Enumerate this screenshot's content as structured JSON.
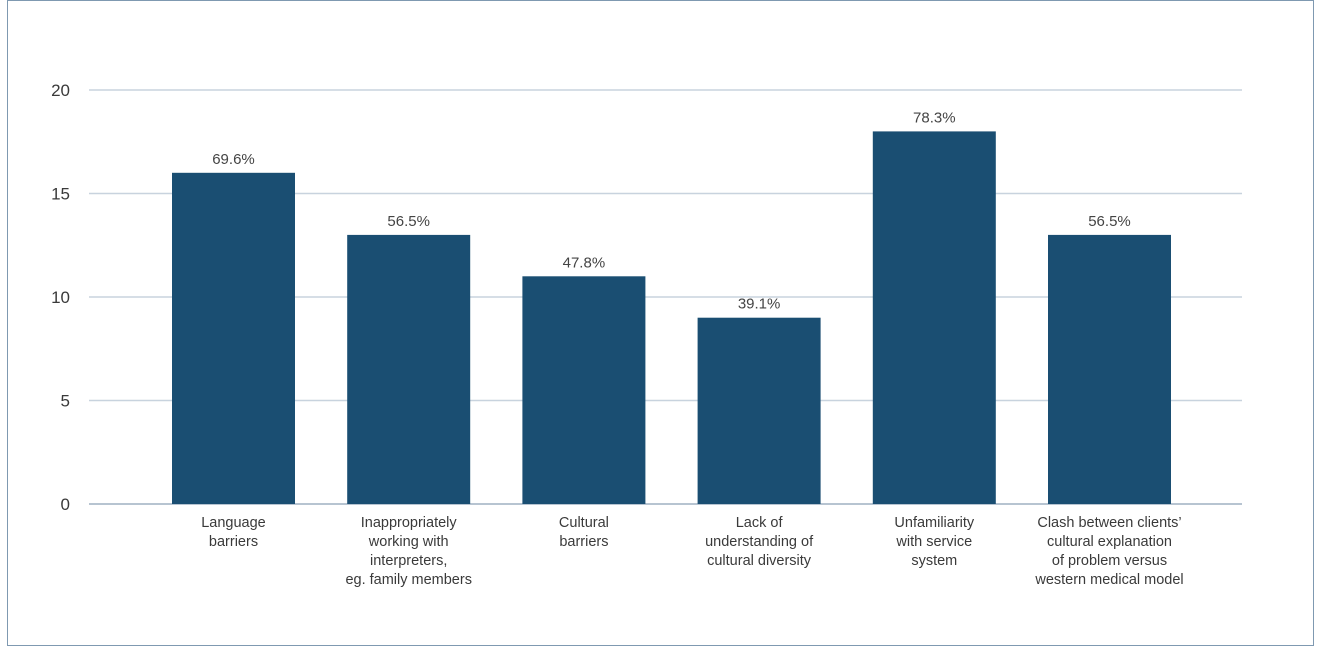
{
  "chart_data": {
    "type": "bar",
    "categories": [
      [
        "Language",
        "barriers"
      ],
      [
        "Inappropriately",
        "working with",
        "interpreters,",
        "eg. family members"
      ],
      [
        "Cultural",
        "barriers"
      ],
      [
        "Lack of",
        "understanding of",
        "cultural diversity"
      ],
      [
        "Unfamiliarity",
        "with service",
        "system"
      ],
      [
        "Clash between clients’",
        "cultural explanation",
        "of problem versus",
        "western medical model"
      ]
    ],
    "values": [
      16,
      13,
      11,
      9,
      18,
      13
    ],
    "data_labels": [
      "69.6%",
      "56.5%",
      "47.8%",
      "39.1%",
      "78.3%",
      "56.5%"
    ],
    "yticks": [
      "0",
      "5",
      "10",
      "15",
      "20"
    ],
    "ylim": [
      0,
      20
    ],
    "grid": true,
    "colors": {
      "bar": "#1a4e72",
      "grid": "#c8d3de",
      "axis": "#9fb1c2"
    }
  }
}
